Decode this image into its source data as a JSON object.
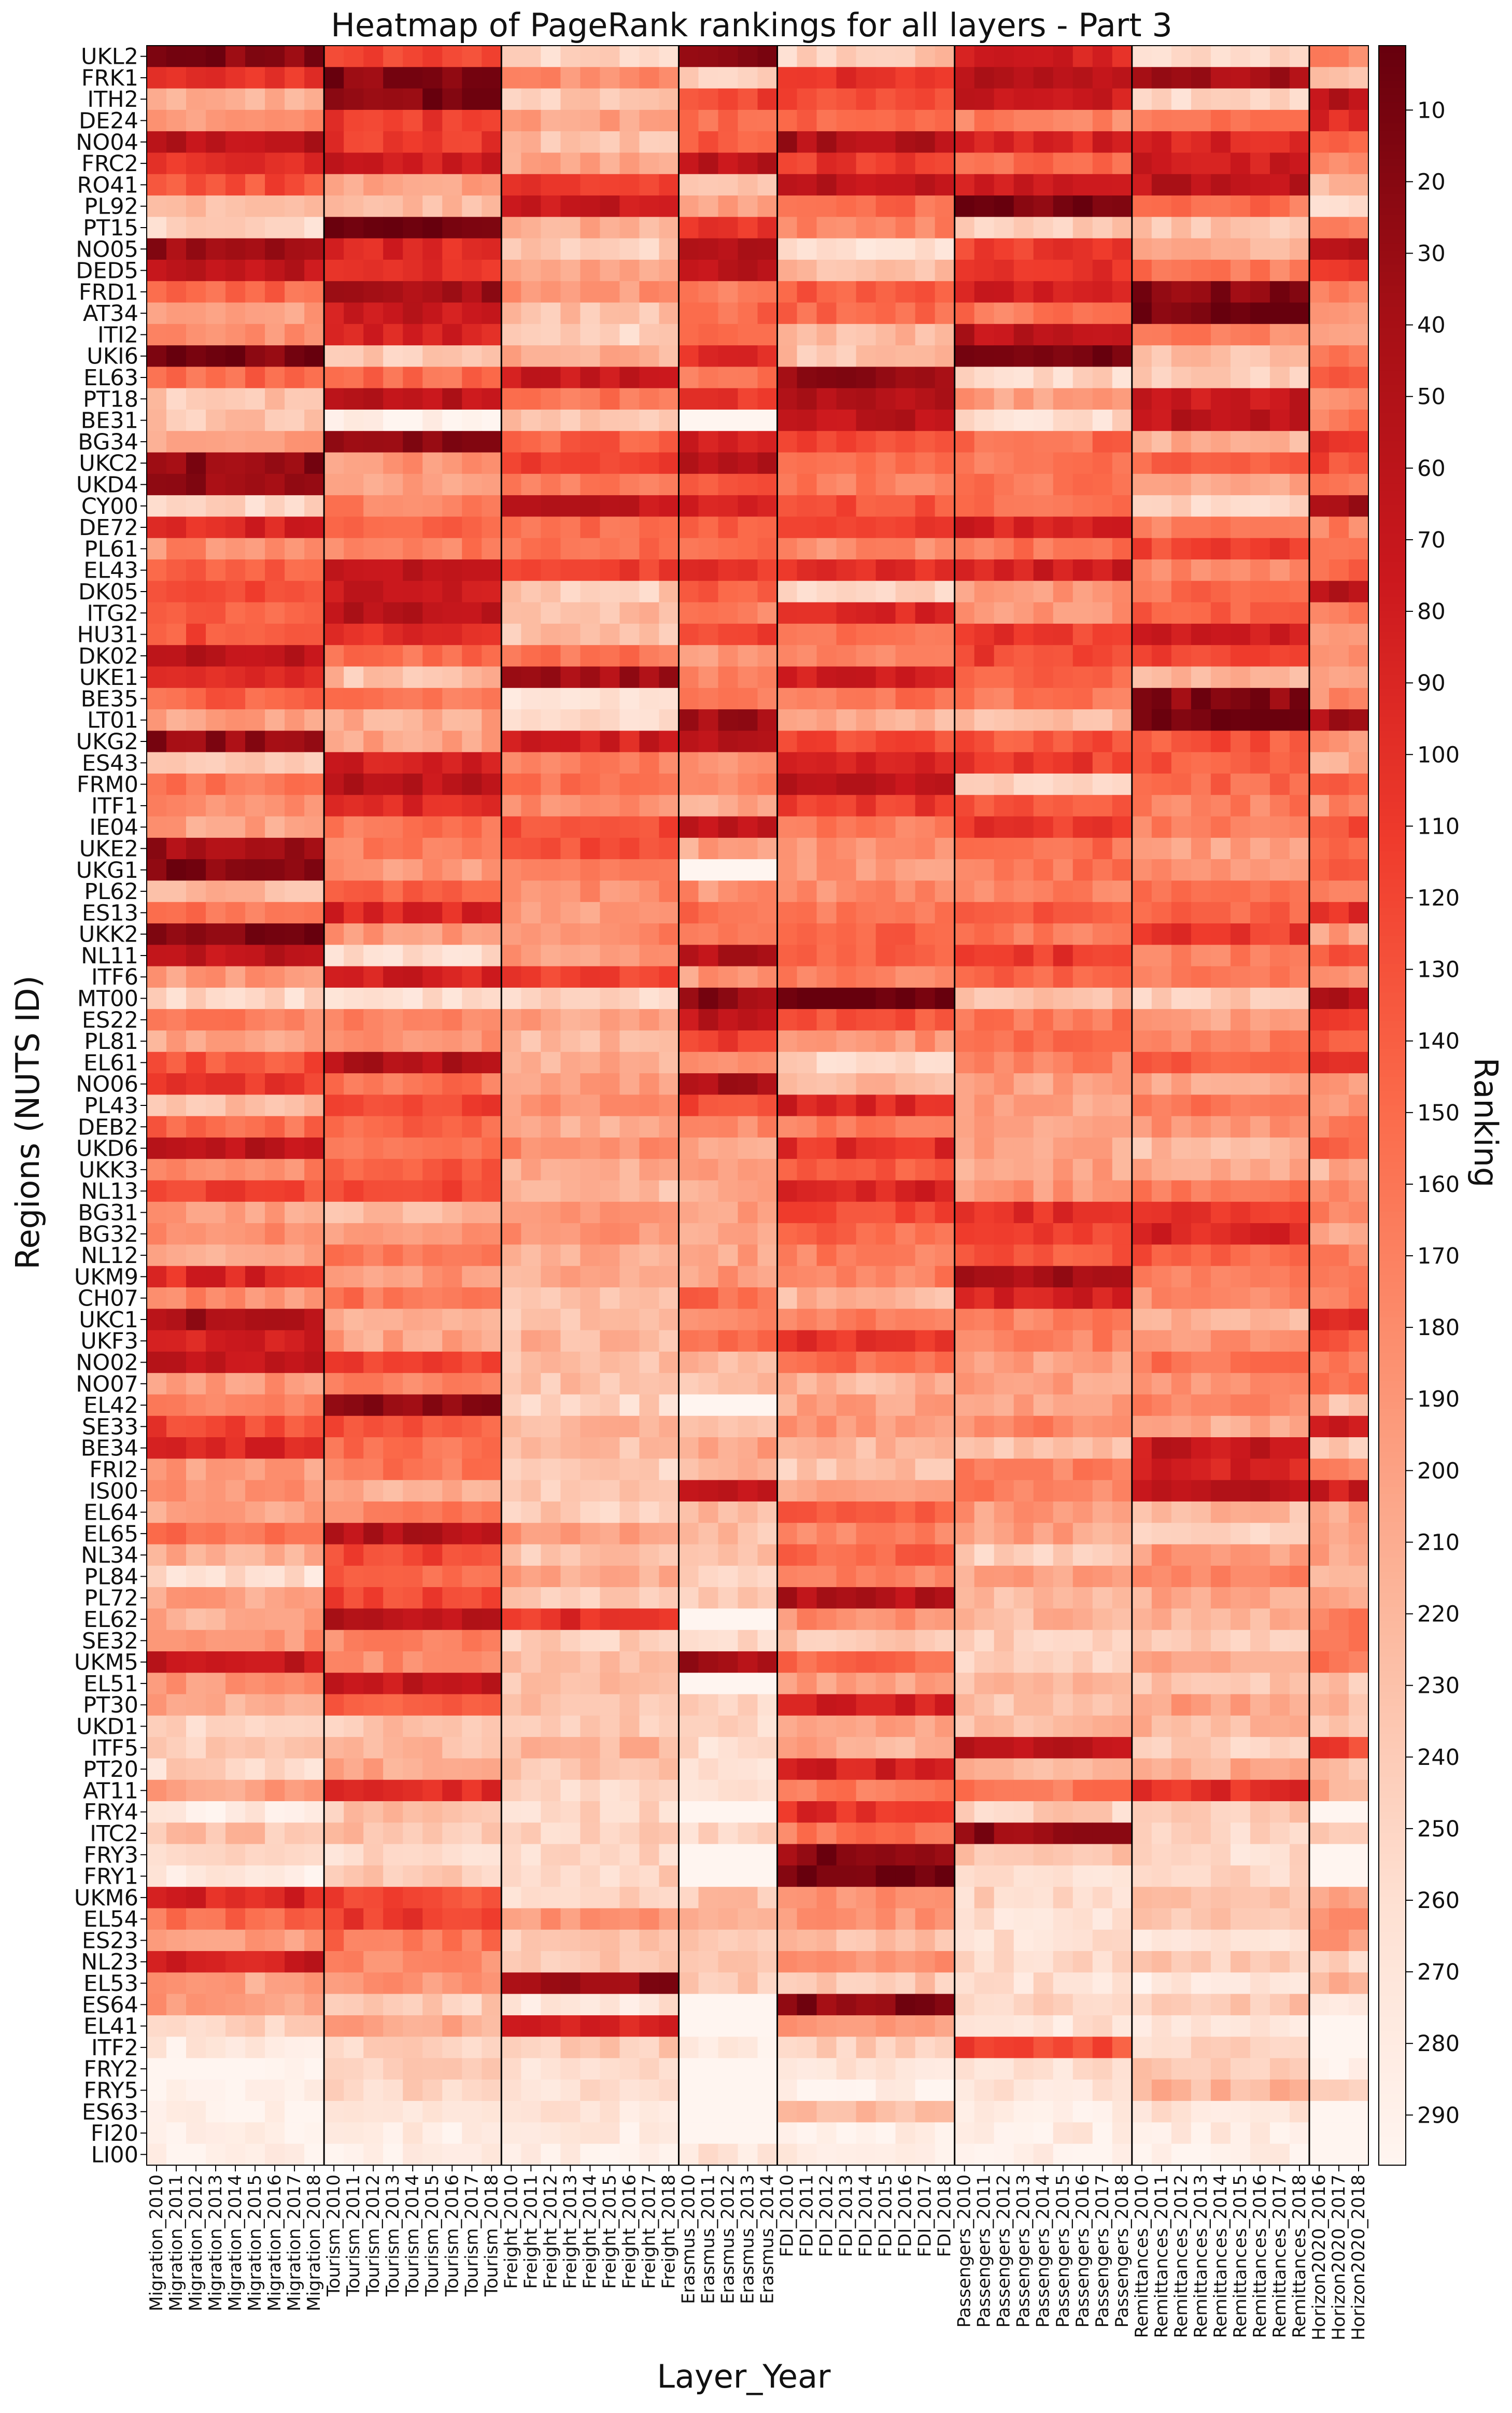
{
  "chart_data": {
    "type": "heatmap",
    "title": "Heatmap of PageRank rankings for all layers - Part 3",
    "xlabel": "Layer_Year",
    "ylabel": "Regions (NUTS ID)",
    "colorbar_label": "Ranking",
    "colormap": "Reds (reversed: low ranking = dark red)",
    "color_range": [
      1,
      297
    ],
    "colorbar_ticks": [
      10,
      20,
      30,
      40,
      50,
      60,
      70,
      80,
      90,
      100,
      110,
      120,
      130,
      140,
      150,
      160,
      170,
      180,
      190,
      200,
      210,
      220,
      230,
      240,
      250,
      260,
      270,
      280,
      290
    ],
    "groups": [
      {
        "layer": "Migration",
        "years": [
          "2010",
          "2011",
          "2012",
          "2013",
          "2014",
          "2015",
          "2016",
          "2017",
          "2018"
        ]
      },
      {
        "layer": "Tourism",
        "years": [
          "2010",
          "2011",
          "2012",
          "2013",
          "2014",
          "2015",
          "2016",
          "2017",
          "2018"
        ]
      },
      {
        "layer": "Freight",
        "years": [
          "2010",
          "2011",
          "2012",
          "2013",
          "2014",
          "2015",
          "2016",
          "2017",
          "2018"
        ]
      },
      {
        "layer": "Erasmus",
        "years": [
          "2010",
          "2011",
          "2012",
          "2013",
          "2014"
        ]
      },
      {
        "layer": "FDI",
        "years": [
          "2010",
          "2011",
          "2012",
          "2013",
          "2014",
          "2015",
          "2016",
          "2017",
          "2018"
        ]
      },
      {
        "layer": "Passengers",
        "years": [
          "2010",
          "2011",
          "2012",
          "2013",
          "2014",
          "2015",
          "2016",
          "2017",
          "2018"
        ]
      },
      {
        "layer": "Remittances",
        "years": [
          "2010",
          "2011",
          "2012",
          "2013",
          "2014",
          "2015",
          "2016",
          "2017",
          "2018"
        ]
      },
      {
        "layer": "Horizon2020",
        "years": [
          "2016",
          "2017",
          "2018"
        ]
      }
    ],
    "regions": [
      "UKL2",
      "FRK1",
      "ITH2",
      "DE24",
      "NO04",
      "FRC2",
      "RO41",
      "PL92",
      "PT15",
      "NO05",
      "DED5",
      "FRD1",
      "AT34",
      "ITI2",
      "UKI6",
      "EL63",
      "PT18",
      "BE31",
      "BG34",
      "UKC2",
      "UKD4",
      "CY00",
      "DE72",
      "PL61",
      "EL43",
      "DK05",
      "ITG2",
      "HU31",
      "DK02",
      "UKE1",
      "BE35",
      "LT01",
      "UKG2",
      "ES43",
      "FRM0",
      "ITF1",
      "IE04",
      "UKE2",
      "UKG1",
      "PL62",
      "ES13",
      "UKK2",
      "NL11",
      "ITF6",
      "MT00",
      "ES22",
      "PL81",
      "EL61",
      "NO06",
      "PL43",
      "DEB2",
      "UKD6",
      "UKK3",
      "NL13",
      "BG31",
      "BG32",
      "NL12",
      "UKM9",
      "CH07",
      "UKC1",
      "UKF3",
      "NO02",
      "NO07",
      "EL42",
      "SE33",
      "BE34",
      "FRI2",
      "IS00",
      "EL64",
      "EL65",
      "NL34",
      "PL84",
      "PL72",
      "EL62",
      "SE32",
      "UKM5",
      "EL51",
      "PT30",
      "UKD1",
      "ITF5",
      "PT20",
      "AT11",
      "FRY4",
      "ITC2",
      "FRY3",
      "FRY1",
      "UKM6",
      "EL54",
      "ES23",
      "NL23",
      "EL53",
      "ES64",
      "EL41",
      "ITF2",
      "FRY2",
      "FRY5",
      "ES63",
      "FI20",
      "LI00"
    ],
    "group_base_rankings": [
      [
        20,
        100,
        210,
        190,
        60,
        100,
        130,
        230,
        250,
        30,
        60,
        150,
        200,
        180,
        15,
        150,
        230,
        230,
        200,
        25,
        30,
        250,
        90,
        180,
        140,
        120,
        140,
        130,
        60,
        100,
        140,
        200,
        30,
        240,
        160,
        180,
        200,
        40,
        20,
        220,
        160,
        20,
        60,
        190,
        250,
        170,
        200,
        130,
        110,
        230,
        150,
        60,
        180,
        120,
        200,
        180,
        200,
        90,
        180,
        40,
        80,
        70,
        190,
        170,
        120,
        90,
        200,
        190,
        200,
        160,
        210,
        260,
        200,
        210,
        180,
        70,
        190,
        210,
        250,
        240,
        250,
        200,
        280,
        230,
        250,
        280,
        90,
        150,
        200,
        80,
        200,
        200,
        250,
        280,
        290,
        290,
        290,
        290,
        290
      ],
      [
        120,
        20,
        15,
        110,
        110,
        80,
        200,
        220,
        10,
        90,
        100,
        40,
        70,
        80,
        240,
        150,
        60,
        290,
        20,
        190,
        200,
        170,
        140,
        170,
        60,
        70,
        60,
        100,
        160,
        230,
        160,
        210,
        200,
        80,
        60,
        90,
        160,
        170,
        190,
        140,
        90,
        190,
        260,
        80,
        260,
        180,
        190,
        50,
        160,
        120,
        140,
        160,
        140,
        120,
        220,
        190,
        160,
        190,
        160,
        220,
        200,
        120,
        170,
        20,
        130,
        150,
        160,
        210,
        170,
        50,
        120,
        150,
        120,
        60,
        170,
        180,
        70,
        140,
        230,
        220,
        210,
        90,
        230,
        230,
        250,
        240,
        120,
        110,
        160,
        180,
        190,
        240,
        200,
        250,
        240,
        250,
        270,
        280,
        290
      ],
      [
        250,
        180,
        240,
        200,
        230,
        200,
        110,
        70,
        210,
        240,
        200,
        190,
        230,
        250,
        210,
        70,
        160,
        230,
        140,
        110,
        170,
        60,
        150,
        150,
        110,
        240,
        230,
        230,
        160,
        40,
        270,
        260,
        80,
        160,
        160,
        180,
        130,
        130,
        160,
        180,
        200,
        180,
        200,
        120,
        250,
        200,
        220,
        210,
        200,
        190,
        210,
        180,
        210,
        220,
        190,
        190,
        210,
        210,
        230,
        230,
        220,
        230,
        230,
        250,
        220,
        230,
        240,
        240,
        240,
        200,
        230,
        210,
        240,
        100,
        240,
        230,
        230,
        230,
        240,
        220,
        230,
        250,
        250,
        250,
        250,
        250,
        250,
        190,
        240,
        230,
        30,
        270,
        80,
        240,
        260,
        260,
        270,
        280,
        290
      ],
      [
        30,
        250,
        120,
        150,
        140,
        60,
        230,
        200,
        110,
        40,
        60,
        160,
        150,
        150,
        90,
        150,
        110,
        297,
        90,
        50,
        120,
        80,
        140,
        150,
        100,
        140,
        170,
        120,
        200,
        170,
        170,
        40,
        60,
        190,
        170,
        210,
        60,
        200,
        297,
        180,
        160,
        170,
        50,
        190,
        30,
        60,
        110,
        170,
        40,
        130,
        180,
        200,
        200,
        210,
        200,
        200,
        200,
        190,
        150,
        180,
        150,
        220,
        230,
        297,
        230,
        200,
        210,
        70,
        220,
        230,
        230,
        240,
        240,
        297,
        250,
        40,
        297,
        250,
        250,
        260,
        260,
        250,
        297,
        250,
        297,
        297,
        230,
        220,
        240,
        230,
        240,
        297,
        297,
        280,
        297,
        297,
        297,
        297,
        270
      ],
      [
        240,
        100,
        130,
        150,
        50,
        110,
        60,
        150,
        170,
        260,
        220,
        140,
        150,
        220,
        230,
        20,
        50,
        60,
        130,
        160,
        170,
        130,
        110,
        180,
        100,
        250,
        90,
        160,
        180,
        80,
        160,
        210,
        120,
        80,
        60,
        110,
        160,
        190,
        190,
        180,
        160,
        140,
        140,
        170,
        1,
        130,
        190,
        250,
        220,
        90,
        170,
        100,
        140,
        90,
        120,
        150,
        170,
        170,
        220,
        170,
        100,
        150,
        220,
        200,
        190,
        220,
        230,
        190,
        140,
        170,
        140,
        170,
        50,
        180,
        230,
        150,
        200,
        80,
        200,
        210,
        80,
        160,
        100,
        160,
        20,
        10,
        180,
        190,
        230,
        180,
        240,
        20,
        200,
        240,
        270,
        290,
        230,
        280,
        290
      ],
      [
        80,
        60,
        70,
        170,
        90,
        150,
        70,
        10,
        240,
        110,
        100,
        80,
        160,
        60,
        10,
        250,
        200,
        260,
        150,
        160,
        160,
        160,
        80,
        160,
        80,
        190,
        190,
        110,
        120,
        150,
        160,
        220,
        130,
        110,
        250,
        130,
        110,
        150,
        160,
        170,
        140,
        160,
        110,
        140,
        230,
        160,
        160,
        170,
        200,
        200,
        200,
        200,
        200,
        190,
        100,
        110,
        130,
        40,
        80,
        170,
        170,
        200,
        200,
        200,
        170,
        230,
        170,
        170,
        190,
        200,
        240,
        200,
        220,
        220,
        240,
        250,
        220,
        230,
        220,
        60,
        220,
        160,
        240,
        30,
        240,
        260,
        250,
        260,
        260,
        250,
        260,
        250,
        270,
        120,
        260,
        270,
        280,
        280,
        290
      ],
      [
        250,
        40,
        250,
        160,
        90,
        80,
        60,
        150,
        230,
        210,
        160,
        20,
        10,
        170,
        230,
        240,
        70,
        60,
        210,
        140,
        200,
        250,
        170,
        120,
        180,
        150,
        140,
        80,
        120,
        220,
        20,
        10,
        130,
        140,
        150,
        170,
        170,
        200,
        190,
        160,
        150,
        110,
        170,
        170,
        240,
        200,
        170,
        140,
        200,
        160,
        190,
        220,
        200,
        160,
        100,
        90,
        140,
        170,
        180,
        220,
        190,
        160,
        190,
        180,
        210,
        70,
        80,
        60,
        220,
        240,
        190,
        170,
        210,
        220,
        240,
        210,
        230,
        200,
        220,
        240,
        210,
        100,
        240,
        250,
        260,
        250,
        230,
        230,
        260,
        240,
        270,
        240,
        270,
        250,
        240,
        220,
        270,
        280,
        290
      ],
      [
        180,
        220,
        60,
        100,
        150,
        190,
        220,
        260,
        160,
        40,
        100,
        180,
        190,
        200,
        150,
        140,
        180,
        160,
        110,
        120,
        150,
        40,
        170,
        140,
        150,
        50,
        170,
        200,
        190,
        200,
        180,
        40,
        190,
        210,
        140,
        180,
        130,
        160,
        150,
        180,
        100,
        200,
        140,
        180,
        50,
        110,
        140,
        100,
        190,
        200,
        170,
        140,
        210,
        180,
        160,
        210,
        170,
        170,
        170,
        100,
        130,
        170,
        150,
        220,
        80,
        230,
        180,
        70,
        200,
        190,
        210,
        220,
        200,
        170,
        160,
        160,
        240,
        220,
        240,
        120,
        220,
        210,
        297,
        230,
        297,
        297,
        200,
        180,
        190,
        240,
        220,
        280,
        297,
        297,
        290,
        250,
        297,
        297,
        297
      ]
    ]
  }
}
